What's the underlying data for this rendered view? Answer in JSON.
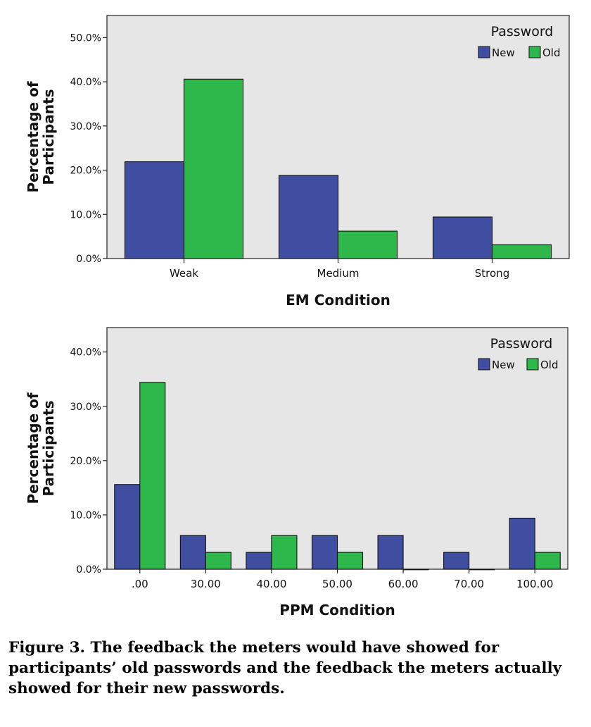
{
  "chart_data": [
    {
      "type": "bar",
      "xlabel": "EM Condition",
      "ylabel": [
        "Percentage of",
        "Participants"
      ],
      "categories": [
        "Weak",
        "Medium",
        "Strong"
      ],
      "series": [
        {
          "name": "New",
          "color": "#3f4ea1",
          "values": [
            21.9,
            18.8,
            9.4
          ]
        },
        {
          "name": "Old",
          "color": "#2eb84c",
          "values": [
            40.6,
            6.2,
            3.1
          ]
        }
      ],
      "ylim": [
        0,
        55
      ],
      "yticks": [
        "0.0%",
        "10.0%",
        "20.0%",
        "30.0%",
        "40.0%",
        "50.0%"
      ],
      "ytick_values": [
        0,
        10,
        20,
        30,
        40,
        50
      ],
      "legend": {
        "title": "Password",
        "position": "top-right"
      },
      "grid": false,
      "plot_background": "#e6e6e6"
    },
    {
      "type": "bar",
      "xlabel": "PPM Condition",
      "ylabel": [
        "Percentage of",
        "Participants"
      ],
      "categories": [
        ".00",
        "30.00",
        "40.00",
        "50.00",
        "60.00",
        "70.00",
        "100.00"
      ],
      "series": [
        {
          "name": "New",
          "color": "#3f4ea1",
          "values": [
            15.6,
            6.2,
            3.1,
            6.2,
            6.2,
            3.1,
            9.4
          ]
        },
        {
          "name": "Old",
          "color": "#2eb84c",
          "values": [
            34.4,
            3.1,
            6.2,
            3.1,
            0.0,
            0.0,
            3.1
          ]
        }
      ],
      "ylim": [
        0,
        44.5
      ],
      "yticks": [
        "0.0%",
        "10.0%",
        "20.0%",
        "30.0%",
        "40.0%"
      ],
      "ytick_values": [
        0,
        10,
        20,
        30,
        40
      ],
      "legend": {
        "title": "Password",
        "position": "top-right"
      },
      "grid": false,
      "plot_background": "#e6e6e6"
    }
  ],
  "caption": "Figure 3.  The feedback the meters would have showed for participants’ old passwords and the feedback the meters actually showed for their new passwords."
}
